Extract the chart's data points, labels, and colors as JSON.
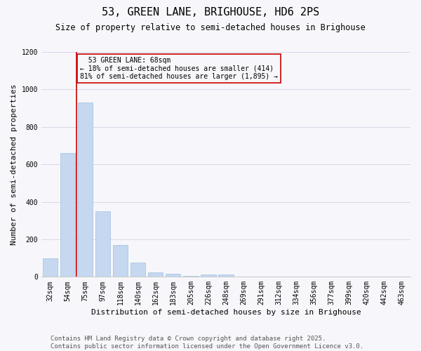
{
  "title": "53, GREEN LANE, BRIGHOUSE, HD6 2PS",
  "subtitle": "Size of property relative to semi-detached houses in Brighouse",
  "xlabel": "Distribution of semi-detached houses by size in Brighouse",
  "ylabel": "Number of semi-detached properties",
  "categories": [
    "32sqm",
    "54sqm",
    "75sqm",
    "97sqm",
    "118sqm",
    "140sqm",
    "162sqm",
    "183sqm",
    "205sqm",
    "226sqm",
    "248sqm",
    "269sqm",
    "291sqm",
    "312sqm",
    "334sqm",
    "356sqm",
    "377sqm",
    "399sqm",
    "420sqm",
    "442sqm",
    "463sqm"
  ],
  "values": [
    100,
    660,
    930,
    350,
    170,
    75,
    25,
    18,
    5,
    13,
    13,
    3,
    3,
    3,
    1,
    1,
    1,
    1,
    0,
    0,
    0
  ],
  "bar_color": "#c5d8f0",
  "bar_edgecolor": "#a0bfe0",
  "grid_color": "#d8d8e8",
  "marker_label": "53 GREEN LANE: 68sqm",
  "marker_smaller_pct": "18%",
  "marker_smaller_n": "414",
  "marker_larger_pct": "81%",
  "marker_larger_n": "1,895",
  "marker_line_color": "#cc0000",
  "annotation_box_color": "#cc0000",
  "ylim": [
    0,
    1200
  ],
  "yticks": [
    0,
    200,
    400,
    600,
    800,
    1000,
    1200
  ],
  "footer1": "Contains HM Land Registry data © Crown copyright and database right 2025.",
  "footer2": "Contains public sector information licensed under the Open Government Licence v3.0.",
  "bg_color": "#f7f7fb",
  "title_fontsize": 11,
  "subtitle_fontsize": 8.5,
  "axis_label_fontsize": 8,
  "tick_fontsize": 7,
  "footer_fontsize": 6.5,
  "annotation_fontsize": 7
}
